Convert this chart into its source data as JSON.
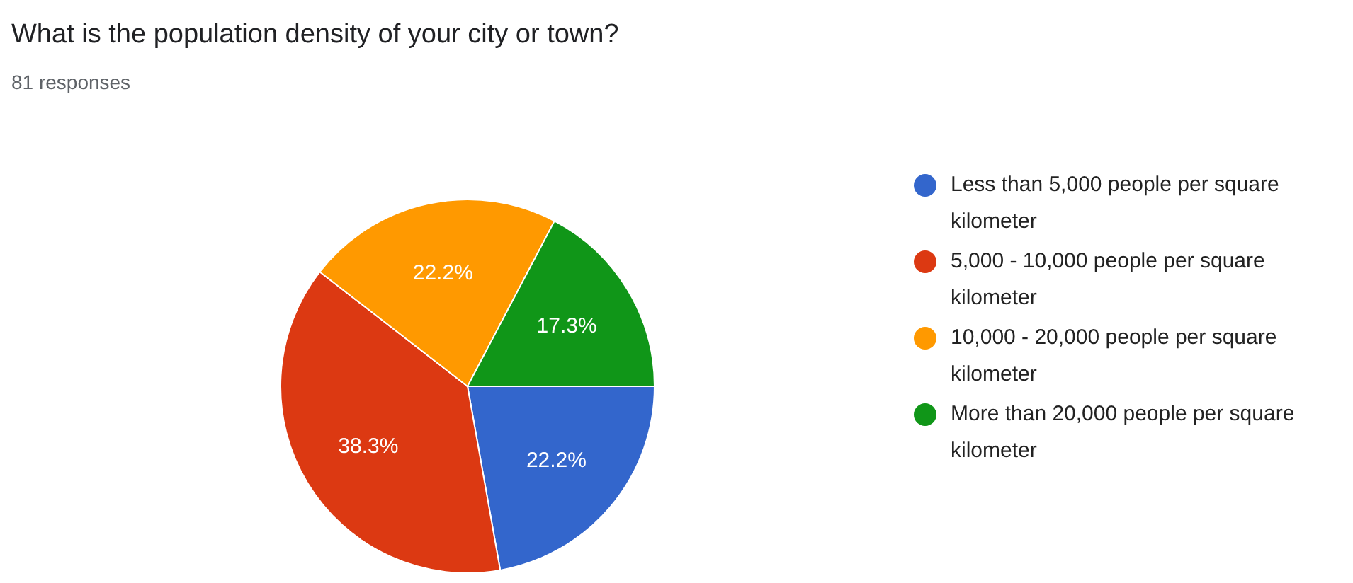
{
  "chart_data": {
    "type": "pie",
    "title": "What is the population density of your city or town?",
    "subtitle": "81 responses",
    "categories": [
      "Less than 5,000 people per square kilometer",
      "5,000 - 10,000 people per square kilometer",
      "10,000 - 20,000 people per square kilometer",
      "More than 20,000 people per square kilometer"
    ],
    "values": [
      22.2,
      38.3,
      22.2,
      17.3
    ],
    "value_labels": [
      "22.2%",
      "38.3%",
      "22.2%",
      "17.3%"
    ],
    "colors": [
      "#3366cc",
      "#dc3912",
      "#ff9900",
      "#109618"
    ],
    "legend": "right"
  }
}
